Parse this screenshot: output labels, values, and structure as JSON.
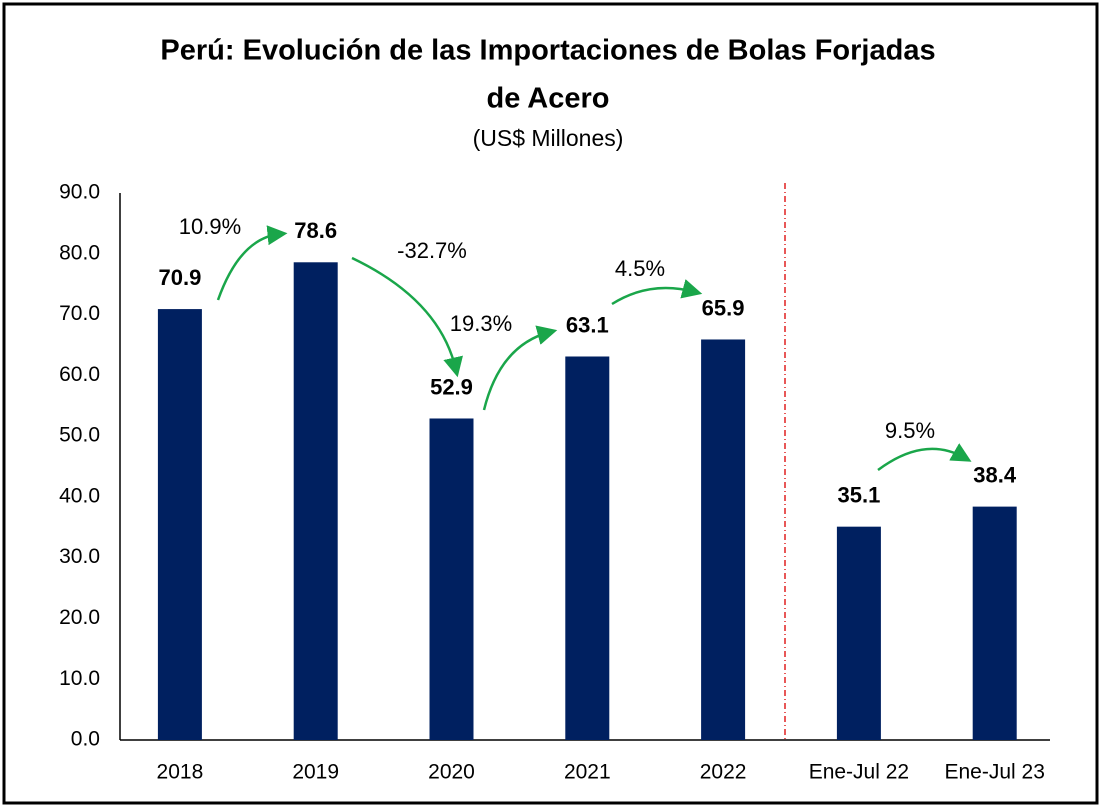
{
  "chart_data": {
    "type": "bar",
    "title": "Perú: Evolución de las Importaciones de Bolas Forjadas",
    "title_line2": "de Acero",
    "subtitle": "(US$ Millones)",
    "categories": [
      "2018",
      "2019",
      "2020",
      "2021",
      "2022",
      "Ene-Jul 22",
      "Ene-Jul 23"
    ],
    "values": [
      70.9,
      78.6,
      52.9,
      63.1,
      65.9,
      35.1,
      38.4
    ],
    "color": "#002060",
    "ylim": [
      0,
      90
    ],
    "yticks": [
      {
        "value": 0,
        "label": "0.0"
      },
      {
        "value": 10,
        "label": "10.0"
      },
      {
        "value": 20,
        "label": "20.0"
      },
      {
        "value": 30,
        "label": "30.0"
      },
      {
        "value": 40,
        "label": "40.0"
      },
      {
        "value": 50,
        "label": "50.0"
      },
      {
        "value": 60,
        "label": "60.0"
      },
      {
        "value": 70,
        "label": "70.0"
      },
      {
        "value": 80,
        "label": "80.0"
      },
      {
        "value": 90,
        "label": "90.0"
      }
    ],
    "grid": false,
    "annotations": [
      "10.9%",
      "-32.7%",
      "19.3%",
      "4.5%",
      "9.5%"
    ]
  }
}
